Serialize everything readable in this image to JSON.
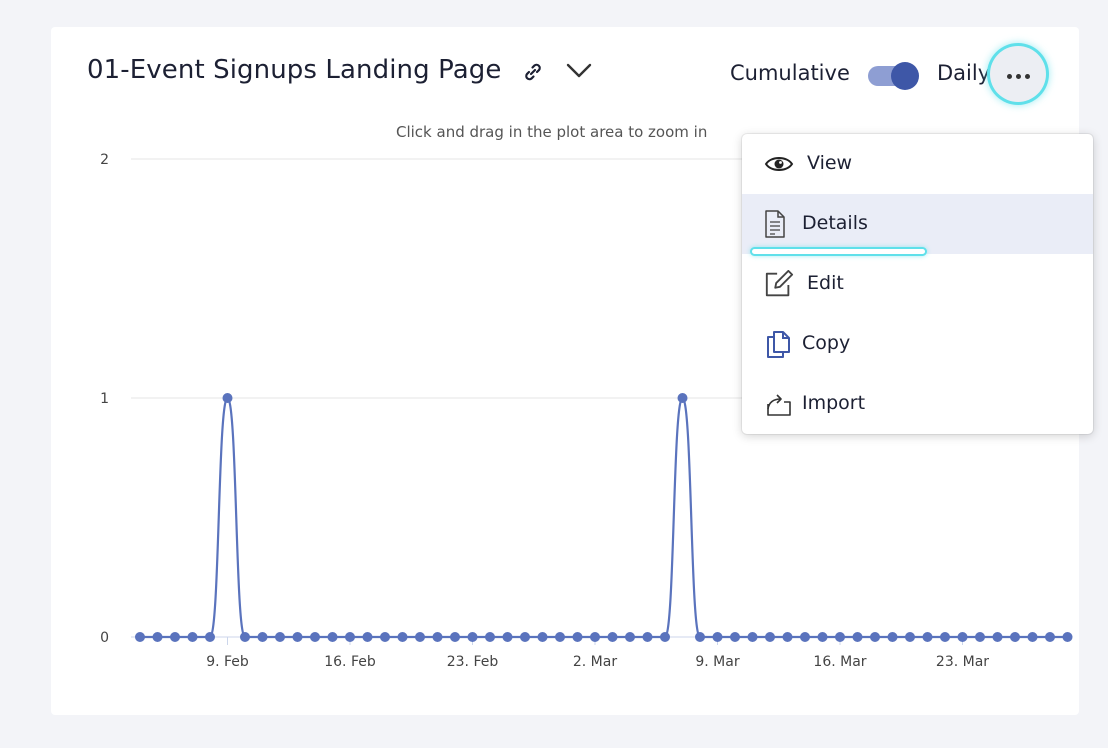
{
  "header": {
    "title": "01-Event Signups Landing Page",
    "cumulative_label": "Cumulative",
    "daily_label": "Daily",
    "toggle_state": "daily"
  },
  "chart_hint": "Click and drag in the plot area to zoom in",
  "colors": {
    "series": "#5a73bd",
    "accent": "#3e57a7",
    "focus": "#5fe0ea"
  },
  "menu": {
    "items": [
      {
        "label": "View",
        "icon": "eye-icon"
      },
      {
        "label": "Details",
        "icon": "document-icon"
      },
      {
        "label": "Edit",
        "icon": "edit-icon"
      },
      {
        "label": "Copy",
        "icon": "copy-icon"
      },
      {
        "label": "Import",
        "icon": "import-icon"
      }
    ],
    "highlighted": "Details"
  },
  "chart_data": {
    "type": "line",
    "title": "",
    "xlabel": "",
    "ylabel": "",
    "ylim": [
      0,
      2
    ],
    "yticks": [
      "0",
      "1",
      "2"
    ],
    "xticks": [
      "9. Feb",
      "16. Feb",
      "23. Feb",
      "2. Mar",
      "9. Mar",
      "16. Mar",
      "23. Mar"
    ],
    "x": [
      "2024-02-04",
      "2024-02-05",
      "2024-02-06",
      "2024-02-07",
      "2024-02-08",
      "2024-02-09",
      "2024-02-10",
      "2024-02-11",
      "2024-02-12",
      "2024-02-13",
      "2024-02-14",
      "2024-02-15",
      "2024-02-16",
      "2024-02-17",
      "2024-02-18",
      "2024-02-19",
      "2024-02-20",
      "2024-02-21",
      "2024-02-22",
      "2024-02-23",
      "2024-02-24",
      "2024-02-25",
      "2024-02-26",
      "2024-02-27",
      "2024-02-28",
      "2024-02-29",
      "2024-03-01",
      "2024-03-02",
      "2024-03-03",
      "2024-03-04",
      "2024-03-05",
      "2024-03-06",
      "2024-03-07",
      "2024-03-08",
      "2024-03-09",
      "2024-03-10",
      "2024-03-11",
      "2024-03-12",
      "2024-03-13",
      "2024-03-14",
      "2024-03-15",
      "2024-03-16",
      "2024-03-17",
      "2024-03-18",
      "2024-03-19",
      "2024-03-20",
      "2024-03-21",
      "2024-03-22",
      "2024-03-23",
      "2024-03-24",
      "2024-03-25",
      "2024-03-26",
      "2024-03-27",
      "2024-03-28"
    ],
    "series": [
      {
        "values": [
          0,
          0,
          0,
          0,
          0,
          1,
          0,
          0,
          0,
          0,
          0,
          0,
          0,
          0,
          0,
          0,
          0,
          0,
          0,
          0,
          0,
          0,
          0,
          0,
          0,
          0,
          0,
          0,
          0,
          0,
          0,
          1,
          0,
          0,
          0,
          0,
          0,
          0,
          0,
          0,
          0,
          0,
          0,
          0,
          0,
          0,
          0,
          0,
          0,
          0,
          0,
          0,
          0,
          0
        ]
      }
    ],
    "grid": true,
    "legend": "none"
  }
}
